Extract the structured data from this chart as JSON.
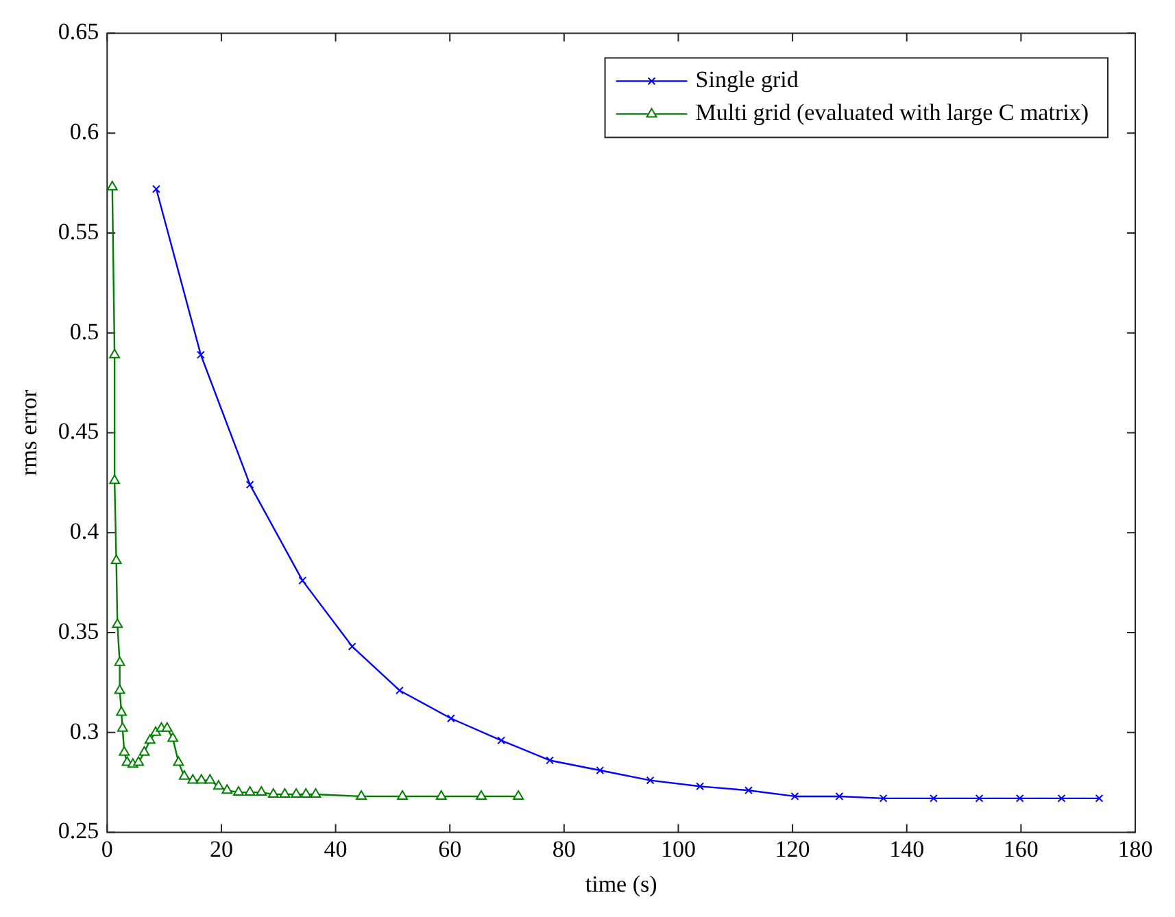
{
  "chart_data": {
    "type": "line",
    "xlabel": "time (s)",
    "ylabel": "rms error",
    "xlim": [
      0,
      180
    ],
    "xticks": [
      0,
      20,
      40,
      60,
      80,
      100,
      120,
      140,
      160,
      180
    ],
    "ylim": [
      0.25,
      0.65
    ],
    "yticks": [
      0.25,
      0.3,
      0.35,
      0.4,
      0.45,
      0.5,
      0.55,
      0.6,
      0.65
    ],
    "grid": false,
    "legend": "top right",
    "line_style": "solid",
    "series": [
      {
        "name": "Single grid",
        "color": "#0000ff",
        "marker": "cross",
        "x": [
          8.6,
          16.4,
          25.0,
          34.2,
          42.9,
          51.2,
          60.2,
          69.0,
          77.5,
          86.3,
          95.1,
          103.8,
          112.3,
          120.4,
          128.2,
          135.9,
          144.7,
          152.7,
          159.8,
          167.1,
          173.7
        ],
        "values": [
          0.572,
          0.489,
          0.424,
          0.376,
          0.343,
          0.321,
          0.307,
          0.296,
          0.286,
          0.281,
          0.276,
          0.273,
          0.271,
          0.268,
          0.268,
          0.267,
          0.267,
          0.267,
          0.267,
          0.267,
          0.267
        ]
      },
      {
        "name": "Multi grid (evaluated with large C matrix)",
        "color": "#008000",
        "marker": "triangle",
        "x": [
          0.9,
          1.3,
          1.3,
          1.6,
          1.8,
          2.2,
          2.2,
          2.5,
          2.7,
          3.0,
          3.5,
          4.5,
          5.5,
          6.5,
          7.5,
          8.5,
          9.5,
          10.5,
          11.5,
          12.5,
          13.5,
          15,
          16.5,
          18,
          19.5,
          21,
          23,
          25,
          27,
          29.1,
          31.1,
          33.1,
          34.8,
          36.5,
          44.5,
          51.7,
          58.5,
          65.5,
          72
        ],
        "values": [
          0.573,
          0.489,
          0.426,
          0.386,
          0.354,
          0.335,
          0.321,
          0.31,
          0.302,
          0.29,
          0.285,
          0.284,
          0.285,
          0.29,
          0.296,
          0.3,
          0.302,
          0.302,
          0.297,
          0.285,
          0.278,
          0.276,
          0.276,
          0.276,
          0.273,
          0.271,
          0.27,
          0.27,
          0.27,
          0.269,
          0.269,
          0.269,
          0.269,
          0.269,
          0.268,
          0.268,
          0.268,
          0.268,
          0.268
        ]
      }
    ]
  }
}
